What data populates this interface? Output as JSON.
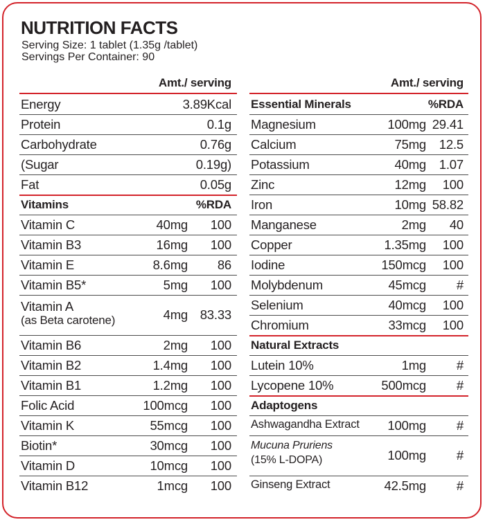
{
  "header": {
    "title": "NUTRITION FACTS",
    "serving_size": "Serving Size: 1 tablet (1.35g /tablet)",
    "servings": "Servings Per Container: 90"
  },
  "left": {
    "amount_heading": "Amt./ serving",
    "nutrients": [
      {
        "name": "Energy",
        "amount": "3.89Kcal"
      },
      {
        "name": "Protein",
        "amount": "0.1g"
      },
      {
        "name": "Carbohydrate",
        "amount": "0.76g"
      },
      {
        "name": "(Sugar",
        "amount": "0.19g)"
      },
      {
        "name": "Fat",
        "amount": "0.05g"
      }
    ],
    "vitamins": {
      "title": "Vitamins",
      "rda_heading": "%RDA",
      "items": [
        {
          "name": "Vitamin C",
          "amount": "40mg",
          "rda": "100"
        },
        {
          "name": "Vitamin B3",
          "amount": "16mg",
          "rda": "100"
        },
        {
          "name": "Vitamin E",
          "amount": "8.6mg",
          "rda": "86"
        },
        {
          "name": "Vitamin B5*",
          "amount": "5mg",
          "rda": "100"
        },
        {
          "name": "Vitamin A",
          "note": "(as Beta carotene)",
          "amount": "4mg",
          "rda": "83.33"
        },
        {
          "name": "Vitamin B6",
          "amount": "2mg",
          "rda": "100"
        },
        {
          "name": "Vitamin B2",
          "amount": "1.4mg",
          "rda": "100"
        },
        {
          "name": "Vitamin B1",
          "amount": "1.2mg",
          "rda": "100"
        },
        {
          "name": "Folic Acid",
          "amount": "100mcg",
          "rda": "100"
        },
        {
          "name": "Vitamin K",
          "amount": "55mcg",
          "rda": "100"
        },
        {
          "name": "Biotin*",
          "amount": "30mcg",
          "rda": "100"
        },
        {
          "name": "Vitamin D",
          "amount": "10mcg",
          "rda": "100"
        },
        {
          "name": "Vitamin B12",
          "amount": "1mcg",
          "rda": "100"
        }
      ]
    }
  },
  "right": {
    "amount_heading": "Amt./ serving",
    "sections": [
      {
        "title": "Essential Minerals",
        "rda_heading": "%RDA",
        "items": [
          {
            "name": "Magnesium",
            "amount": "100mg",
            "rda": "29.41"
          },
          {
            "name": "Calcium",
            "amount": "75mg",
            "rda": "12.5"
          },
          {
            "name": "Potassium",
            "amount": "40mg",
            "rda": "1.07"
          },
          {
            "name": "Zinc",
            "amount": "12mg",
            "rda": "100"
          },
          {
            "name": "Iron",
            "amount": "10mg",
            "rda": "58.82"
          },
          {
            "name": "Manganese",
            "amount": "2mg",
            "rda": "40"
          },
          {
            "name": "Copper",
            "amount": "1.35mg",
            "rda": "100"
          },
          {
            "name": "Iodine",
            "amount": "150mcg",
            "rda": "100"
          },
          {
            "name": "Molybdenum",
            "amount": "45mcg",
            "rda": "#"
          },
          {
            "name": "Selenium",
            "amount": "40mcg",
            "rda": "100"
          },
          {
            "name": "Chromium",
            "amount": "33mcg",
            "rda": "100"
          }
        ]
      },
      {
        "title": "Natural Extracts",
        "items": [
          {
            "name": "Lutein 10%",
            "amount": "1mg",
            "rda": "#"
          },
          {
            "name": "Lycopene 10%",
            "amount": "500mcg",
            "rda": "#"
          }
        ]
      },
      {
        "title": "Adaptogens",
        "small": true,
        "items": [
          {
            "name": "Ashwagandha Extract",
            "amount": "100mg",
            "rda": "#"
          },
          {
            "name": "Mucuna Pruriens",
            "italic": true,
            "note": "(15% L-DOPA)",
            "amount": "100mg",
            "rda": "#"
          },
          {
            "name": "Ginseng Extract",
            "amount": "42.5mg",
            "rda": "#"
          }
        ]
      }
    ]
  }
}
